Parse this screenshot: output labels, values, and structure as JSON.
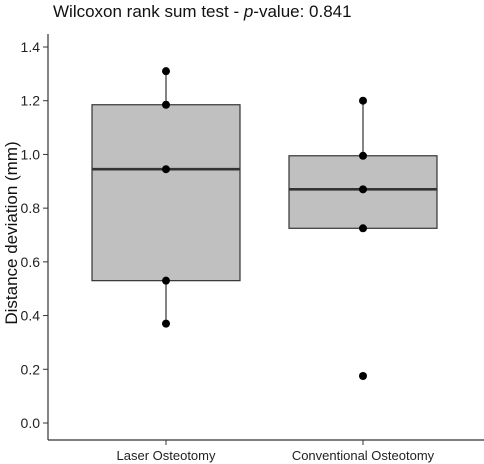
{
  "chart_data": {
    "type": "box",
    "title_parts": [
      "Wilcoxon rank sum test - ",
      "p",
      "-value: 0.841"
    ],
    "ylabel": "Distance deviation (mm)",
    "xlabel": "",
    "ylim": [
      -0.05,
      1.48
    ],
    "yticks": [
      "0.0",
      "0.2",
      "0.4",
      "0.6",
      "0.8",
      "1.0",
      "1.2",
      "1.4"
    ],
    "grid": false,
    "categories": [
      "Laser Osteotomy",
      "Conventional Osteotomy"
    ],
    "boxes": [
      {
        "category": "Laser Osteotomy",
        "whisker_low": 0.37,
        "q1": 0.53,
        "median": 0.945,
        "q3": 1.185,
        "whisker_high": 1.31
      },
      {
        "category": "Conventional Osteotomy",
        "whisker_low": 0.725,
        "q1": 0.725,
        "median": 0.87,
        "q3": 0.995,
        "whisker_high": 1.2
      }
    ],
    "points": [
      {
        "category": "Laser Osteotomy",
        "values": [
          1.31,
          1.185,
          0.945,
          0.53,
          0.37
        ]
      },
      {
        "category": "Conventional Osteotomy",
        "values": [
          1.2,
          0.995,
          0.87,
          0.725,
          0.175
        ]
      }
    ],
    "box_color": "#c0c0c0",
    "line_color": "#333333",
    "point_color": "#000000"
  }
}
